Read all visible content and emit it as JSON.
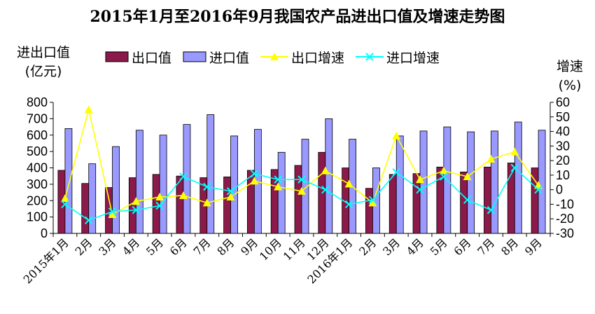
{
  "chart_data": {
    "type": "bar",
    "title": "2015年1月至2016年9月我国农产品进出口值及增速走势图",
    "ylabel_left": [
      "进出口值",
      "(亿元)"
    ],
    "ylabel_right": [
      "增速",
      "(%)"
    ],
    "categories": [
      "2015年1月",
      "2月",
      "3月",
      "4月",
      "5月",
      "6月",
      "7月",
      "8月",
      "9月",
      "10月",
      "11月",
      "12月",
      "2016年1月",
      "2月",
      "3月",
      "4月",
      "5月",
      "6月",
      "7月",
      "8月",
      "9月"
    ],
    "ylim_left": [
      0,
      800
    ],
    "yticks_left": [
      0,
      100,
      200,
      300,
      400,
      500,
      600,
      700,
      800
    ],
    "ylim_right": [
      -30,
      60
    ],
    "yticks_right": [
      -30,
      -20,
      -10,
      0,
      10,
      20,
      30,
      40,
      50,
      60
    ],
    "legend_position": "top",
    "series": [
      {
        "name": "出口值",
        "kind": "bar",
        "axis": "left",
        "color": "#8B1A4A",
        "values": [
          385,
          305,
          280,
          340,
          360,
          350,
          340,
          345,
          385,
          390,
          415,
          495,
          400,
          275,
          360,
          365,
          405,
          375,
          405,
          430,
          400
        ]
      },
      {
        "name": "进口值",
        "kind": "bar",
        "axis": "left",
        "color": "#9999FF",
        "values": [
          640,
          425,
          530,
          630,
          600,
          665,
          725,
          595,
          635,
          495,
          575,
          700,
          575,
          400,
          595,
          625,
          650,
          620,
          625,
          680,
          630
        ]
      },
      {
        "name": "出口增速",
        "kind": "line",
        "axis": "right",
        "color": "#FFFF00",
        "marker": "triangle",
        "values": [
          -6,
          55,
          -17,
          -8,
          -5,
          -4,
          -9,
          -5,
          6,
          2,
          -1,
          13,
          4,
          -9,
          37,
          7,
          13,
          9,
          21,
          26,
          3
        ]
      },
      {
        "name": "进口增速",
        "kind": "line",
        "axis": "right",
        "color": "#00FFFF",
        "marker": "x",
        "values": [
          -10,
          -21,
          -15,
          -14,
          -11,
          9,
          2,
          -1,
          11,
          7,
          7,
          0,
          -10,
          -7,
          12,
          0,
          9,
          -7,
          -14,
          15,
          0
        ]
      }
    ]
  }
}
